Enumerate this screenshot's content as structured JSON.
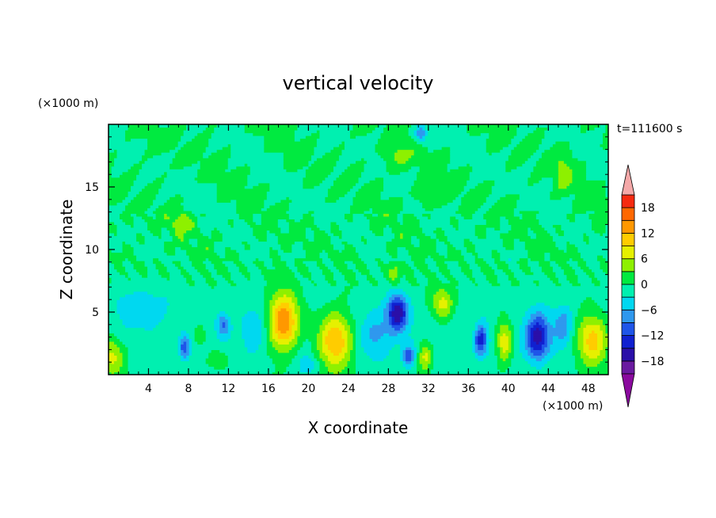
{
  "chart_data": {
    "type": "heatmap",
    "title": "vertical velocity",
    "xlabel": "X coordinate",
    "ylabel": "Z coordinate",
    "x_unit_label": "(×1000 m)",
    "y_unit_label": "(×1000 m)",
    "time_label": "t=111600 s",
    "xlim": [
      0,
      50
    ],
    "ylim": [
      0,
      20
    ],
    "x_ticks": [
      4,
      8,
      12,
      16,
      20,
      24,
      28,
      32,
      36,
      40,
      44,
      48
    ],
    "x_tick_labels": [
      "4",
      "8",
      "12",
      "16",
      "20",
      "24",
      "28",
      "32",
      "36",
      "40",
      "44",
      "48"
    ],
    "y_ticks": [
      5,
      10,
      15
    ],
    "y_tick_labels": [
      "5",
      "10",
      "15"
    ],
    "colorbar": {
      "levels": [
        -21,
        -18,
        -15,
        -12,
        -9,
        -6,
        -3,
        0,
        3,
        6,
        9,
        12,
        15,
        18,
        21
      ],
      "tick_values": [
        -18,
        -12,
        -6,
        0,
        6,
        12,
        18
      ],
      "tick_labels": [
        "−18",
        "−12",
        "−6",
        "0",
        "6",
        "12",
        "18"
      ],
      "colors": [
        "#6a1aa0",
        "#2a0fa8",
        "#1020d0",
        "#1f55e8",
        "#2f98ee",
        "#00d8f0",
        "#00f0b0",
        "#00ea40",
        "#8ef000",
        "#e6f000",
        "#ffcc00",
        "#ff9800",
        "#ff6800",
        "#f52a10"
      ],
      "under_color": "#8a0a9e",
      "over_color": "#f4a8a8"
    },
    "background_level": [
      -3,
      0
    ],
    "features": [
      {
        "x": 17.5,
        "z": 4.2,
        "sx": 1.5,
        "sz": 2.2,
        "amp": 17
      },
      {
        "x": 22.7,
        "z": 2.8,
        "sx": 1.7,
        "sz": 2.2,
        "amp": 14
      },
      {
        "x": 33.4,
        "z": 5.7,
        "sx": 1.1,
        "sz": 1.3,
        "amp": 8
      },
      {
        "x": 39.6,
        "z": 2.7,
        "sx": 0.8,
        "sz": 1.6,
        "amp": 10
      },
      {
        "x": 48.4,
        "z": 2.8,
        "sx": 1.6,
        "sz": 2.0,
        "amp": 12
      },
      {
        "x": 31.7,
        "z": 1.5,
        "sx": 0.7,
        "sz": 1.2,
        "amp": 8
      },
      {
        "x": 28.6,
        "z": 8.1,
        "sx": 0.6,
        "sz": 0.8,
        "amp": 6
      },
      {
        "x": 0.3,
        "z": 1.5,
        "sx": 1.2,
        "sz": 1.5,
        "amp": 8
      },
      {
        "x": 9.2,
        "z": 3.2,
        "sx": 0.6,
        "sz": 0.9,
        "amp": 5
      },
      {
        "x": 7.3,
        "z": 12.2,
        "sx": 1.0,
        "sz": 0.8,
        "amp": 5
      },
      {
        "x": 28.9,
        "z": 17.5,
        "sx": 1.3,
        "sz": 1.2,
        "amp": 4
      },
      {
        "x": 32.0,
        "z": 14.5,
        "sx": 1.5,
        "sz": 1.0,
        "amp": 4
      },
      {
        "x": 45.5,
        "z": 16.3,
        "sx": 0.9,
        "sz": 1.5,
        "amp": 4
      },
      {
        "x": 36.8,
        "z": 3.6,
        "sx": 1.0,
        "sz": 1.4,
        "amp": 4
      },
      {
        "x": 11.0,
        "z": 1.3,
        "sx": 1.0,
        "sz": 0.8,
        "amp": 4
      },
      {
        "x": 28.9,
        "z": 5.0,
        "sx": 1.0,
        "sz": 1.4,
        "amp": -16
      },
      {
        "x": 30.0,
        "z": 1.5,
        "sx": 0.6,
        "sz": 0.9,
        "amp": -10
      },
      {
        "x": 37.2,
        "z": 2.9,
        "sx": 0.7,
        "sz": 1.3,
        "amp": -14
      },
      {
        "x": 42.9,
        "z": 3.0,
        "sx": 1.2,
        "sz": 1.8,
        "amp": -15
      },
      {
        "x": 7.6,
        "z": 2.2,
        "sx": 0.5,
        "sz": 0.9,
        "amp": -11
      },
      {
        "x": 11.5,
        "z": 4.0,
        "sx": 0.6,
        "sz": 0.9,
        "amp": -8
      },
      {
        "x": 31.3,
        "z": 19.2,
        "sx": 0.6,
        "sz": 0.7,
        "amp": -9
      },
      {
        "x": 3.5,
        "z": 5.6,
        "sx": 2.8,
        "sz": 1.5,
        "amp": -4
      },
      {
        "x": 26.8,
        "z": 3.2,
        "sx": 1.6,
        "sz": 2.0,
        "amp": -5
      },
      {
        "x": 20.0,
        "z": 0.8,
        "sx": 1.0,
        "sz": 0.8,
        "amp": -5
      },
      {
        "x": 45.5,
        "z": 4.0,
        "sx": 0.9,
        "sz": 1.6,
        "amp": -6
      },
      {
        "x": 14.5,
        "z": 3.5,
        "sx": 1.2,
        "sz": 1.8,
        "amp": -4
      }
    ]
  }
}
